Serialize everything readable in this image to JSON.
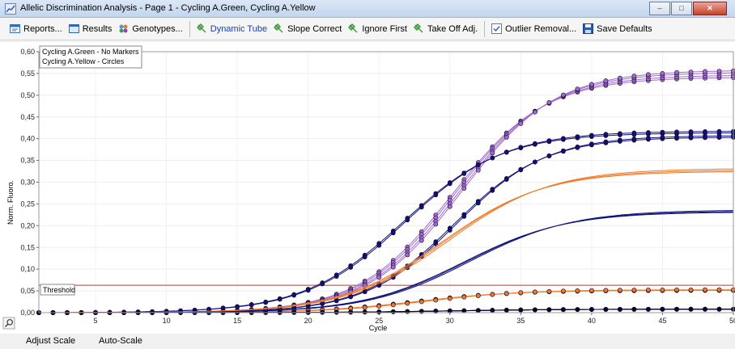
{
  "window": {
    "title": "Allelic Discrimination Analysis - Page 1 - Cycling A.Green, Cycling A.Yellow",
    "buttons": [
      "–",
      "□",
      "✕"
    ]
  },
  "toolbar": {
    "items": [
      {
        "label": "Reports...",
        "icon": "report-icon"
      },
      {
        "label": "Results",
        "icon": "results-icon"
      },
      {
        "label": "Genotypes...",
        "icon": "genotypes-icon"
      },
      {
        "label": "Dynamic Tube",
        "icon": "dynamic-tube-icon",
        "active": true
      },
      {
        "label": "Slope Correct",
        "icon": "slope-correct-icon"
      },
      {
        "label": "Ignore First",
        "icon": "ignore-first-icon"
      },
      {
        "label": "Take Off Adj.",
        "icon": "take-off-icon"
      },
      {
        "label": "Outlier Removal...",
        "icon": "outlier-icon"
      },
      {
        "label": "Save Defaults",
        "icon": "save-icon"
      }
    ]
  },
  "bottom": {
    "adjust_scale": "Adjust Scale",
    "auto_scale": "Auto-Scale"
  },
  "colors": {
    "purple": "#a06ad0",
    "navy": "#10107a",
    "orange": "#ef7a2a",
    "black": "#05052a",
    "threshold": "#c0392b"
  },
  "chart_data": {
    "type": "line",
    "xlabel": "Cycle",
    "ylabel": "Norm. Fluoro.",
    "xlim": [
      1,
      50
    ],
    "ylim": [
      0,
      0.6
    ],
    "xticks": [
      5,
      10,
      15,
      20,
      25,
      30,
      35,
      40,
      45,
      50
    ],
    "yticks": [
      "0,00",
      "0,05",
      "0,10",
      "0,15",
      "0,20",
      "0,25",
      "0,30",
      "0,35",
      "0,40",
      "0,45",
      "0,50",
      "0,55",
      "0,60"
    ],
    "legend": [
      "Cycling A.Green - No Markers",
      "Cycling A.Yellow - Circles"
    ],
    "threshold": {
      "label": "Threshold",
      "value": 0.063
    },
    "series": [
      {
        "channel": "yellow",
        "color": "#a06ad0",
        "marker": "circle",
        "plateau": 0.55,
        "midpoint": 30.5,
        "slope": 3.3,
        "values_at_cycle": {
          "25": 0.053,
          "30": 0.25,
          "35": 0.41,
          "40": 0.5,
          "45": 0.54,
          "50": 0.55
        }
      },
      {
        "channel": "yellow",
        "color": "#10107a",
        "marker": "circle",
        "plateau": 0.42,
        "midpoint": 27,
        "slope": 3.5,
        "values_at_cycle": {
          "20": 0.014,
          "25": 0.1,
          "30": 0.31,
          "35": 0.36,
          "40": 0.39,
          "45": 0.41,
          "50": 0.42
        }
      },
      {
        "channel": "yellow",
        "color": "#10107a",
        "marker": "circle",
        "plateau": 0.41,
        "midpoint": 30.6,
        "slope": 3.2,
        "values_at_cycle": {
          "25": 0.053,
          "30": 0.23,
          "35": 0.33,
          "40": 0.37,
          "45": 0.4,
          "50": 0.41
        }
      },
      {
        "channel": "yellow",
        "color": "#ef7a2a",
        "marker": "circle",
        "plateau": 0.052,
        "midpoint": 28,
        "slope": 3.5,
        "values_at_cycle": {
          "25": 0.018,
          "30": 0.031,
          "35": 0.045,
          "40": 0.05,
          "50": 0.052
        }
      },
      {
        "channel": "yellow",
        "color": "#05052a",
        "marker": "circle",
        "plateau": 0.008,
        "midpoint": 30,
        "slope": 4,
        "values_at_cycle": {
          "30": 0.004,
          "40": 0.007,
          "50": 0.008
        }
      },
      {
        "channel": "green",
        "color": "#ef7a2a",
        "marker": "none",
        "plateau": 0.33,
        "midpoint": 29.8,
        "slope": 3.6,
        "values_at_cycle": {
          "25": 0.07,
          "30": 0.2,
          "35": 0.28,
          "40": 0.31,
          "45": 0.32,
          "50": 0.33
        }
      },
      {
        "channel": "green",
        "color": "#10107a",
        "marker": "none",
        "plateau": 0.235,
        "midpoint": 31.3,
        "slope": 3.6,
        "values_at_cycle": {
          "25": 0.03,
          "30": 0.11,
          "35": 0.18,
          "40": 0.21,
          "45": 0.23,
          "50": 0.235
        }
      }
    ]
  }
}
